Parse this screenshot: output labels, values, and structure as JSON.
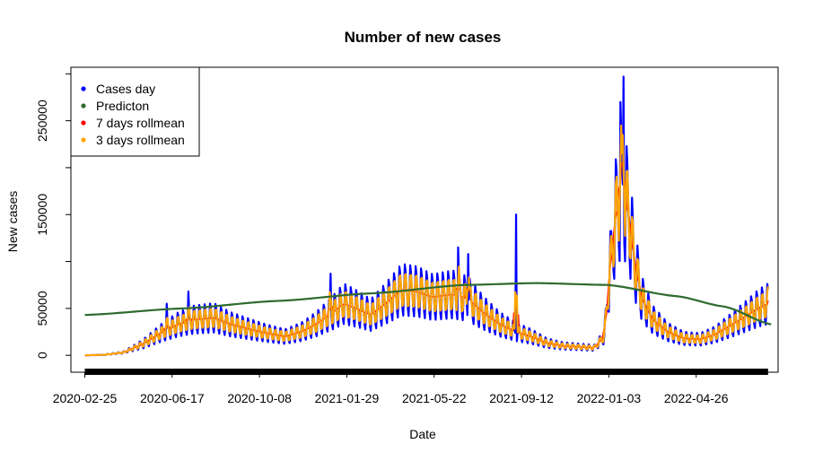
{
  "chart_data": {
    "type": "line",
    "title": "Number of new cases",
    "xlabel": "Date",
    "ylabel": "New cases",
    "x_start": "2020-02-25",
    "x_end": "2022-07-28",
    "xlim": [
      "2020-02-07",
      "2022-08-10"
    ],
    "ylim": [
      -18000,
      307000
    ],
    "x_ticks": [
      "2020-02-25",
      "2020-06-17",
      "2020-10-08",
      "2021-01-29",
      "2021-05-22",
      "2021-09-12",
      "2022-01-03",
      "2022-04-26"
    ],
    "y_ticks": [
      0,
      50000,
      150000,
      250000
    ],
    "legend": {
      "position": "top-left",
      "entries": [
        {
          "label": "Cases day",
          "color": "#0000FF"
        },
        {
          "label": "Predicton",
          "color": "#2E6B2E"
        },
        {
          "label": "7 days rollmean",
          "color": "#FF0000"
        },
        {
          "label": "3 days rollmean",
          "color": "#FFA500"
        }
      ]
    },
    "colors": {
      "cases": "#0000FF",
      "prediction": "#2E6B2E",
      "roll7": "#FF0000",
      "roll3": "#FFA500"
    },
    "weekly_amplitude": 0.35,
    "trend_points": [
      [
        "2020-02-25",
        0
      ],
      [
        "2020-03-20",
        500
      ],
      [
        "2020-04-15",
        3000
      ],
      [
        "2020-05-10",
        12000
      ],
      [
        "2020-06-05",
        25000
      ],
      [
        "2020-06-25",
        33000
      ],
      [
        "2020-07-15",
        38000
      ],
      [
        "2020-08-10",
        40000
      ],
      [
        "2020-09-01",
        33000
      ],
      [
        "2020-09-25",
        28000
      ],
      [
        "2020-10-15",
        24000
      ],
      [
        "2020-11-10",
        20000
      ],
      [
        "2020-12-01",
        25000
      ],
      [
        "2020-12-20",
        33000
      ],
      [
        "2021-01-10",
        45000
      ],
      [
        "2021-01-25",
        55000
      ],
      [
        "2021-02-10",
        50000
      ],
      [
        "2021-03-01",
        43000
      ],
      [
        "2021-03-20",
        55000
      ],
      [
        "2021-04-10",
        70000
      ],
      [
        "2021-04-30",
        68000
      ],
      [
        "2021-05-20",
        62000
      ],
      [
        "2021-06-15",
        65000
      ],
      [
        "2021-07-05",
        60000
      ],
      [
        "2021-07-25",
        45000
      ],
      [
        "2021-08-15",
        33000
      ],
      [
        "2021-09-05",
        25000
      ],
      [
        "2021-09-25",
        20000
      ],
      [
        "2021-10-15",
        13000
      ],
      [
        "2021-11-05",
        10000
      ],
      [
        "2021-11-25",
        9000
      ],
      [
        "2021-12-15",
        8000
      ],
      [
        "2021-12-28",
        20000
      ],
      [
        "2022-01-05",
        95000
      ],
      [
        "2022-01-12",
        150000
      ],
      [
        "2022-01-20",
        175000
      ],
      [
        "2022-01-28",
        155000
      ],
      [
        "2022-02-05",
        100000
      ],
      [
        "2022-02-15",
        60000
      ],
      [
        "2022-03-01",
        38000
      ],
      [
        "2022-03-20",
        25000
      ],
      [
        "2022-04-10",
        18000
      ],
      [
        "2022-05-01",
        17000
      ],
      [
        "2022-05-20",
        22000
      ],
      [
        "2022-06-10",
        32000
      ],
      [
        "2022-06-30",
        42000
      ],
      [
        "2022-07-15",
        50000
      ],
      [
        "2022-07-28",
        55000
      ]
    ],
    "spikes": [
      [
        "2020-06-10",
        55000
      ],
      [
        "2020-07-08",
        68000
      ],
      [
        "2021-01-08",
        87000
      ],
      [
        "2021-06-22",
        115000
      ],
      [
        "2021-07-05",
        108000
      ],
      [
        "2021-09-05",
        150000
      ],
      [
        "2022-01-18",
        270000
      ],
      [
        "2022-01-22",
        297000
      ]
    ],
    "prediction": [
      [
        "2020-02-25",
        43000
      ],
      [
        "2020-07-01",
        50000
      ],
      [
        "2020-11-01",
        58000
      ],
      [
        "2021-03-01",
        66000
      ],
      [
        "2021-07-01",
        75000
      ],
      [
        "2021-10-01",
        77000
      ],
      [
        "2022-01-01",
        75000
      ],
      [
        "2022-04-01",
        63000
      ],
      [
        "2022-06-01",
        52000
      ],
      [
        "2022-08-01",
        33000
      ]
    ]
  }
}
